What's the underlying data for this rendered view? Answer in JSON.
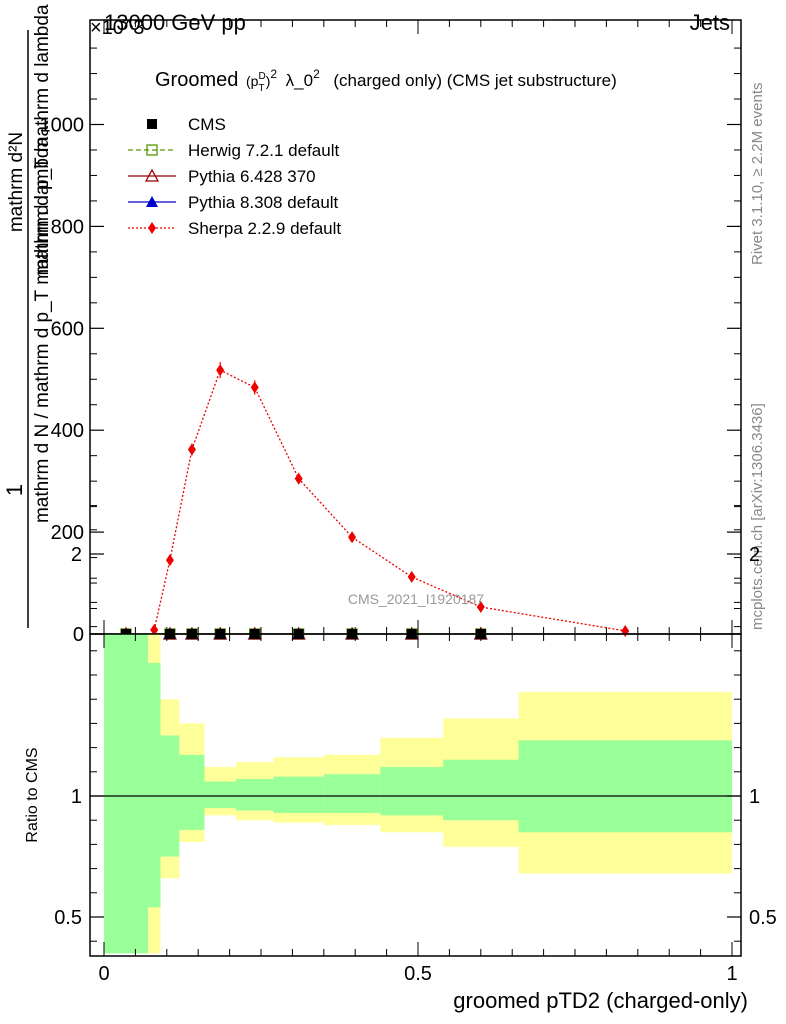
{
  "header": {
    "energy_label": "13000 GeV pp",
    "category_label": "Jets",
    "exponent_label": "×10^3"
  },
  "side_text": {
    "rivet": "Rivet 3.1.10, ≥ 2.2M events",
    "mcplots": "mcplots.cern.ch [arXiv:1306.3436]"
  },
  "watermark": "CMS_2021_I1920187",
  "chart_data": [
    {
      "type": "line",
      "title": "Groomed (p_T^D)^2 λ_0^2  (charged only) (CMS jet substructure)",
      "title_parts": {
        "pre": "Groomed",
        "post": "λ_0",
        "tail": "(charged only) (CMS jet substructure)"
      },
      "ylabel": {
        "numerator": "1",
        "denominator": "mathrm d N / mathrm d p_T mathrm d lambda",
        "prefactor": "mathrm d^2N / (mathrm d p_T mathrm d lambda)",
        "top": "mathrm d²N",
        "bottom": "mathrm d p_T mathrm d lambda"
      },
      "ylim": [
        0,
        1180
      ],
      "y_multiplier": 1000,
      "yticks": [
        0,
        200,
        400,
        600,
        800,
        1000
      ],
      "ytick_labels": [
        "0",
        "200",
        "400",
        "600",
        "800",
        "1000"
      ],
      "xlim": [
        -0.01,
        1.0
      ],
      "grid": false,
      "legend_position": "top-left",
      "series": [
        {
          "name": "CMS",
          "color": "#000000",
          "marker": "square-filled",
          "x": [
            0.035,
            0.105,
            0.14,
            0.185,
            0.24,
            0.31,
            0.395,
            0.49,
            0.6
          ],
          "y": [
            0,
            0,
            0,
            0,
            0,
            0,
            0,
            0,
            0
          ]
        },
        {
          "name": "Herwig 7.2.1 default",
          "color": "#559900",
          "marker": "square-open",
          "dash": "5,3",
          "x": [
            0.035,
            0.105,
            0.14,
            0.185,
            0.24,
            0.31,
            0.395,
            0.49,
            0.6
          ],
          "y": [
            0,
            0,
            0,
            0,
            0,
            0,
            0,
            0,
            0
          ]
        },
        {
          "name": "Pythia 6.428 370",
          "color": "#990000",
          "marker": "triangle-open",
          "x": [
            0.035,
            0.105,
            0.14,
            0.185,
            0.24,
            0.31,
            0.395,
            0.49,
            0.6
          ],
          "y": [
            0,
            0,
            0,
            0,
            0,
            0,
            0,
            0,
            0
          ]
        },
        {
          "name": "Pythia 8.308 default",
          "color": "#0000cc",
          "marker": "triangle-filled",
          "x": [
            0.035,
            0.105,
            0.14,
            0.185,
            0.24,
            0.31,
            0.395,
            0.49,
            0.6
          ],
          "y": [
            0,
            0,
            0,
            0,
            0,
            0,
            0,
            0,
            0
          ]
        },
        {
          "name": "Sherpa 2.2.9 default",
          "color": "#ee0000",
          "marker": "diamond-filled",
          "dash": "2,2",
          "x": [
            0.08,
            0.105,
            0.14,
            0.185,
            0.24,
            0.31,
            0.395,
            0.49,
            0.6,
            0.83
          ],
          "y": [
            8,
            145,
            362,
            518,
            484,
            305,
            190,
            112,
            53,
            6
          ],
          "yerr": [
            2,
            6,
            12,
            16,
            14,
            10,
            7,
            5,
            3,
            1
          ]
        }
      ]
    },
    {
      "type": "area",
      "ylabel": "Ratio to CMS",
      "xlabel": "groomed pTD2 (charged-only)",
      "ylim": [
        0.35,
        2.25
      ],
      "yticks": [
        0.5,
        1,
        2
      ],
      "ytick_labels": [
        "0.5",
        "1",
        "2"
      ],
      "xlim": [
        -0.01,
        1.0
      ],
      "xticks": [
        0,
        0.5,
        1
      ],
      "xtick_labels": [
        "0",
        "0.5",
        "1"
      ],
      "reference_line": 1,
      "band_colors": {
        "inner": "#99ff99",
        "outer": "#ffff99"
      },
      "bins": [
        {
          "lo": 0.0,
          "hi": 0.07,
          "outer": [
            0.35,
            2.25
          ],
          "inner": [
            0.35,
            1.8
          ]
        },
        {
          "lo": 0.07,
          "hi": 0.09,
          "outer": [
            0.35,
            1.95
          ],
          "inner": [
            0.54,
            1.55
          ]
        },
        {
          "lo": 0.09,
          "hi": 0.12,
          "outer": [
            0.66,
            1.4
          ],
          "inner": [
            0.75,
            1.25
          ]
        },
        {
          "lo": 0.12,
          "hi": 0.16,
          "outer": [
            0.81,
            1.3
          ],
          "inner": [
            0.86,
            1.17
          ]
        },
        {
          "lo": 0.16,
          "hi": 0.21,
          "outer": [
            0.92,
            1.12
          ],
          "inner": [
            0.95,
            1.06
          ]
        },
        {
          "lo": 0.21,
          "hi": 0.27,
          "outer": [
            0.9,
            1.14
          ],
          "inner": [
            0.94,
            1.07
          ]
        },
        {
          "lo": 0.27,
          "hi": 0.35,
          "outer": [
            0.89,
            1.16
          ],
          "inner": [
            0.93,
            1.08
          ]
        },
        {
          "lo": 0.35,
          "hi": 0.44,
          "outer": [
            0.88,
            1.17
          ],
          "inner": [
            0.93,
            1.09
          ]
        },
        {
          "lo": 0.44,
          "hi": 0.54,
          "outer": [
            0.85,
            1.24
          ],
          "inner": [
            0.92,
            1.12
          ]
        },
        {
          "lo": 0.54,
          "hi": 0.66,
          "outer": [
            0.79,
            1.32
          ],
          "inner": [
            0.9,
            1.15
          ]
        },
        {
          "lo": 0.66,
          "hi": 1.0,
          "outer": [
            0.68,
            1.43
          ],
          "inner": [
            0.85,
            1.23
          ]
        }
      ]
    }
  ]
}
